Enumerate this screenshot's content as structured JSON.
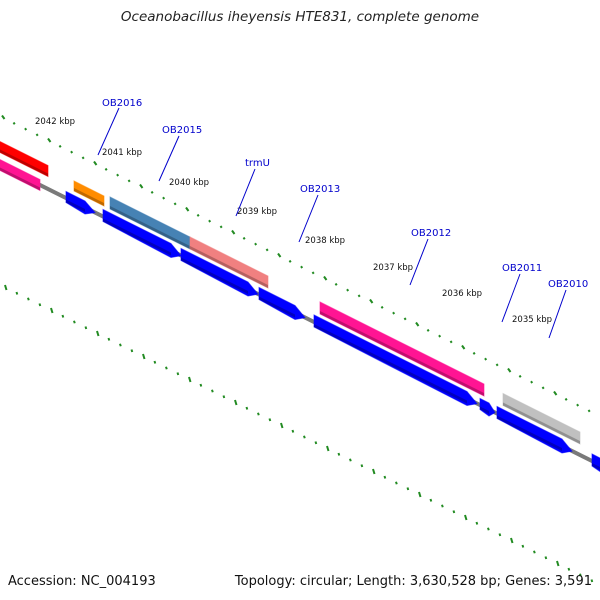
{
  "title": "Oceanobacillus iheyensis HTE831, complete genome",
  "footer": {
    "accession": "Accession: NC_004193",
    "summary": "Topology: circular; Length: 3,630,528 bp; Genes: 3,591"
  },
  "colors": {
    "backbone": "#7a7a7a",
    "tick": "#228b22",
    "gene_label": "#0000cc",
    "reverse_strand_gene": "#0000ff"
  },
  "tick_labels": [
    "2042 kbp",
    "2041 kbp",
    "2040 kbp",
    "2039 kbp",
    "2038 kbp",
    "2037 kbp",
    "2036 kbp",
    "2035 kbp"
  ],
  "gene_labels": [
    "OB2016",
    "OB2015",
    "trmU",
    "OB2013",
    "OB2012",
    "OB2011",
    "OB2010"
  ],
  "features": [
    {
      "strand": "outer",
      "color": "#ff0000",
      "shape": "bar"
    },
    {
      "strand": "outer",
      "color": "#ff8c00",
      "shape": "bar"
    },
    {
      "strand": "outer",
      "color": "#4682b4",
      "shape": "bar"
    },
    {
      "strand": "outer",
      "color": "#f08080",
      "shape": "bar"
    },
    {
      "strand": "outer",
      "color": "#ff1493",
      "shape": "bar"
    },
    {
      "strand": "outer",
      "color": "#c0c0c0",
      "shape": "bar"
    },
    {
      "strand": "inner",
      "color": "#ff1493",
      "shape": "bar"
    },
    {
      "strand": "inner",
      "color": "#0000ff",
      "shape": "arrow"
    },
    {
      "strand": "inner",
      "color": "#0000ff",
      "shape": "arrow"
    },
    {
      "strand": "inner",
      "color": "#0000ff",
      "shape": "arrow"
    },
    {
      "strand": "inner",
      "color": "#0000ff",
      "shape": "arrow"
    },
    {
      "strand": "inner",
      "color": "#0000ff",
      "shape": "arrow"
    },
    {
      "strand": "inner",
      "color": "#0000ff",
      "shape": "arrow"
    },
    {
      "strand": "inner",
      "color": "#0000ff",
      "shape": "arrow"
    },
    {
      "strand": "inner",
      "color": "#0000ff",
      "shape": "arrow"
    }
  ]
}
